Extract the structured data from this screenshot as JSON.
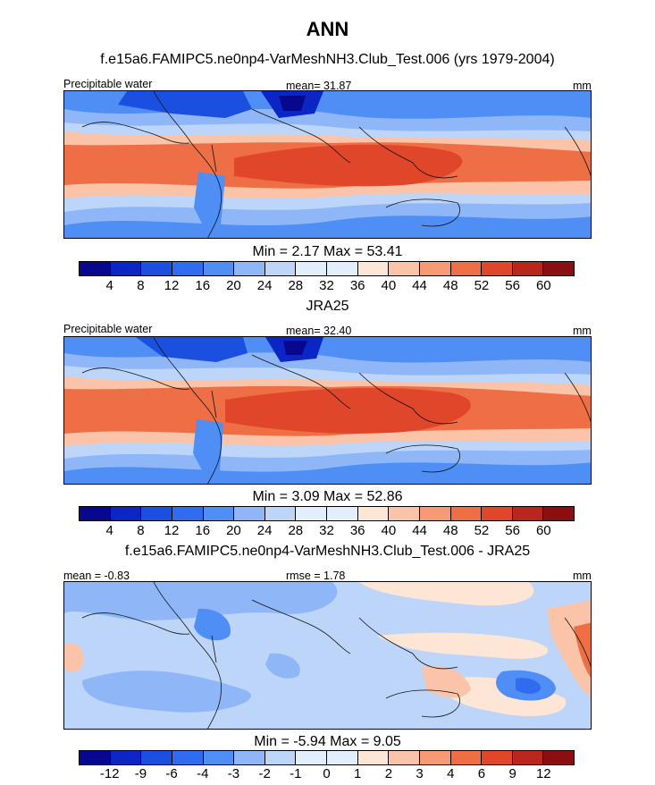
{
  "figure": {
    "title": "ANN"
  },
  "panels": [
    {
      "title": "f.e15a6.FAMIPC5.ne0np4-VarMeshNH3.Club_Test.006 (yrs 1979-2004)",
      "left_label": "Precipitable water",
      "center_label": "mean=  31.87",
      "right_label": "mm",
      "stats": "Min =   2.17 Max =  53.41"
    },
    {
      "title": "JRA25",
      "left_label": "Precipitable water",
      "center_label": "mean=  32.40",
      "right_label": "mm",
      "stats": "Min =   3.09 Max =  52.86"
    },
    {
      "title": "f.e15a6.FAMIPC5.ne0np4-VarMeshNH3.Club_Test.006 - JRA25",
      "left_label": "mean =  -0.83",
      "center_label": "rmse =   1.78",
      "right_label": "mm",
      "stats": "Min =  -5.94 Max =   9.05"
    }
  ],
  "colorbars": {
    "field_levels": [
      "4",
      "8",
      "12",
      "16",
      "20",
      "24",
      "28",
      "32",
      "36",
      "40",
      "44",
      "48",
      "52",
      "56",
      "60"
    ],
    "diff_levels": [
      "-12",
      "-9",
      "-6",
      "-4",
      "-3",
      "-2",
      "-1",
      "0",
      "1",
      "2",
      "3",
      "4",
      "6",
      "9",
      "12"
    ],
    "colors": [
      "#08088f",
      "#0b26c4",
      "#1a4fe0",
      "#2f6cf0",
      "#4f8ef5",
      "#8fb6f7",
      "#bcd5f9",
      "#e3eefc",
      "#fde6d6",
      "#fbc4a8",
      "#f59a74",
      "#ee6e46",
      "#e0462a",
      "#b8261c",
      "#8b0e10"
    ]
  }
}
